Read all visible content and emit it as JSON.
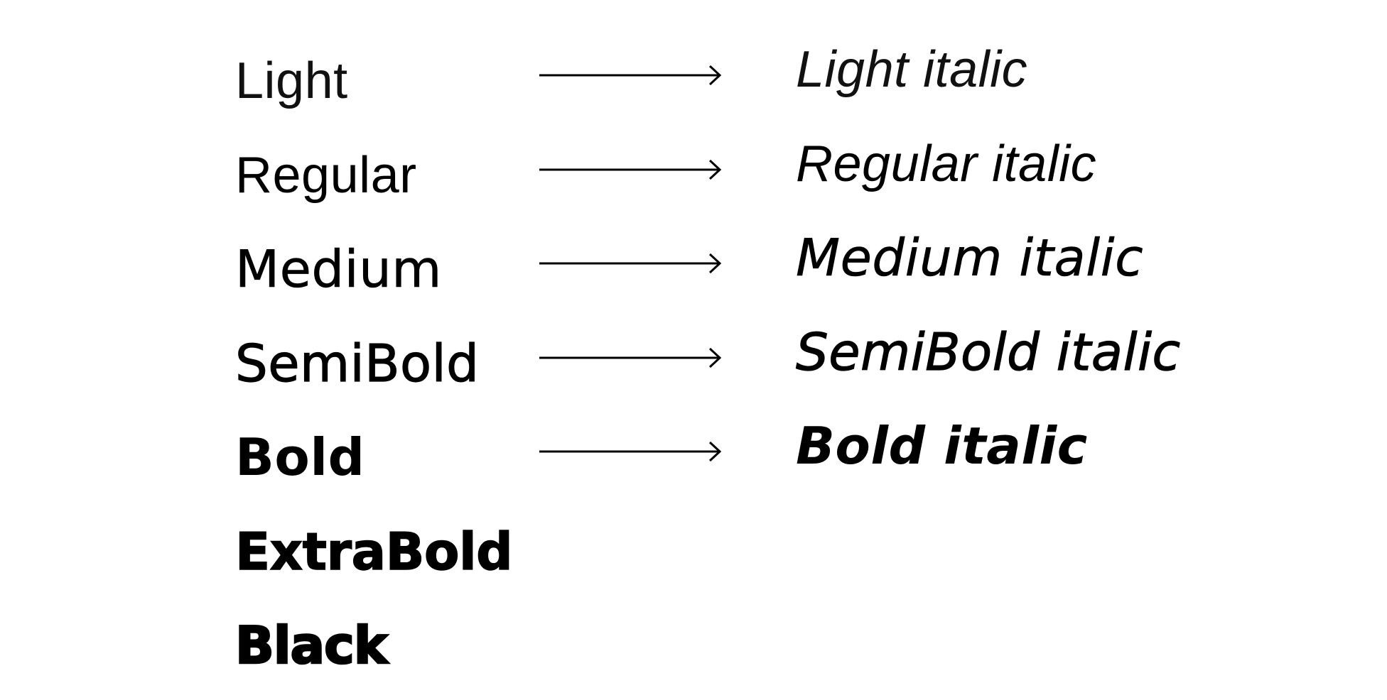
{
  "weights": [
    {
      "upright": "Light",
      "italic": "Light italic",
      "has_italic": true
    },
    {
      "upright": "Regular",
      "italic": "Regular italic",
      "has_italic": true
    },
    {
      "upright": "Medium",
      "italic": "Medium italic",
      "has_italic": true
    },
    {
      "upright": "SemiBold",
      "italic": "SemiBold italic",
      "has_italic": true
    },
    {
      "upright": "Bold",
      "italic": "Bold italic",
      "has_italic": true
    },
    {
      "upright": "ExtraBold",
      "italic": "",
      "has_italic": false
    },
    {
      "upright": "Black",
      "italic": "",
      "has_italic": false
    }
  ],
  "colors": {
    "background": "#ffffff",
    "text": "#000000"
  },
  "icons": {
    "arrow": "right-arrow-icon"
  }
}
